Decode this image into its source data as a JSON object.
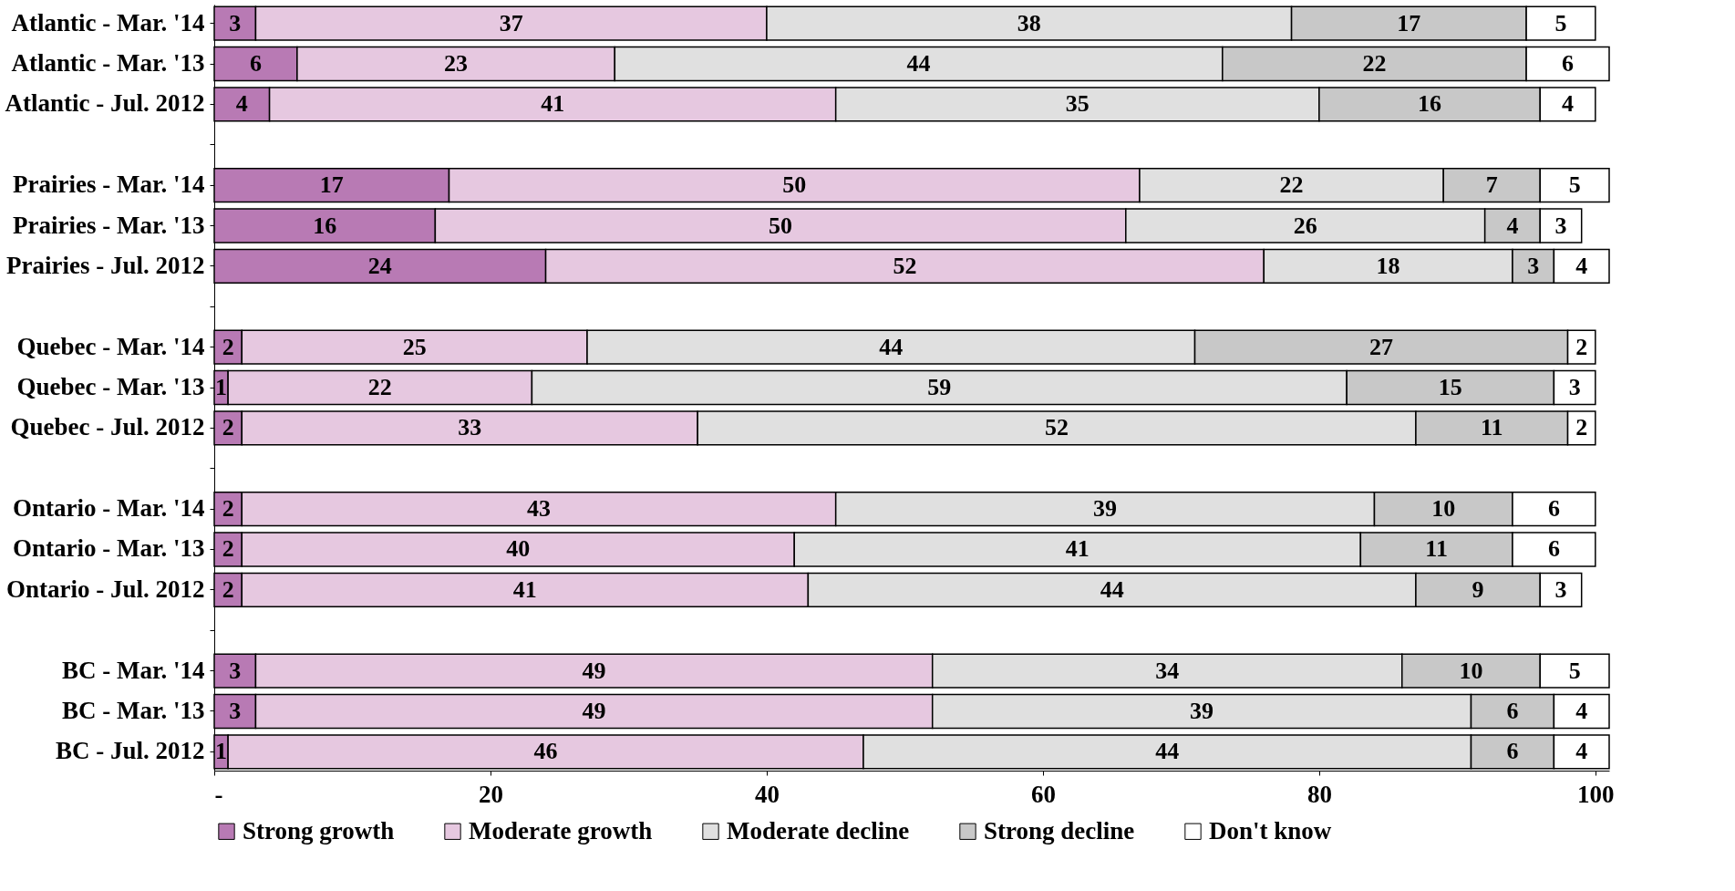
{
  "chart_data": {
    "type": "bar",
    "orientation": "horizontal",
    "stacked": true,
    "data_labels": true,
    "grid": false,
    "legend": "bottom",
    "categories": [
      "Atlantic - Mar. '14",
      "Atlantic - Mar. '13",
      "Atlantic - Jul. 2012",
      null,
      "Prairies - Mar. '14",
      "Prairies - Mar. '13",
      "Prairies - Jul. 2012",
      null,
      "Quebec - Mar. '14",
      "Quebec - Mar. '13",
      "Quebec - Jul. 2012",
      null,
      "Ontario - Mar. '14",
      "Ontario - Mar. '13",
      "Ontario - Jul. 2012",
      null,
      "BC - Mar. '14",
      "BC - Mar. '13",
      "BC - Jul. 2012"
    ],
    "series": [
      {
        "name": "Strong growth",
        "color": "#b87ab4",
        "values": [
          3,
          6,
          4,
          null,
          17,
          16,
          24,
          null,
          2,
          1,
          2,
          null,
          2,
          2,
          2,
          null,
          3,
          3,
          1
        ]
      },
      {
        "name": "Moderate growth",
        "color": "#e6c8e0",
        "values": [
          37,
          23,
          41,
          null,
          50,
          50,
          52,
          null,
          25,
          22,
          33,
          null,
          43,
          40,
          41,
          null,
          49,
          49,
          46
        ]
      },
      {
        "name": "Moderate decline",
        "color": "#e0e0e0",
        "values": [
          38,
          44,
          35,
          null,
          22,
          26,
          18,
          null,
          44,
          59,
          52,
          null,
          39,
          41,
          44,
          null,
          34,
          39,
          44
        ]
      },
      {
        "name": "Strong decline",
        "color": "#c8c8c8",
        "values": [
          17,
          22,
          16,
          null,
          7,
          4,
          3,
          null,
          27,
          15,
          11,
          null,
          10,
          11,
          9,
          null,
          10,
          6,
          6
        ]
      },
      {
        "name": "Don't know",
        "color": "#ffffff",
        "values": [
          5,
          6,
          4,
          null,
          5,
          3,
          4,
          null,
          2,
          3,
          2,
          null,
          6,
          6,
          3,
          null,
          5,
          4,
          4
        ]
      }
    ],
    "xlim": [
      0,
      101
    ],
    "xticks": [
      {
        "value": 0,
        "label": "-"
      },
      20,
      40,
      60,
      80,
      100
    ]
  }
}
